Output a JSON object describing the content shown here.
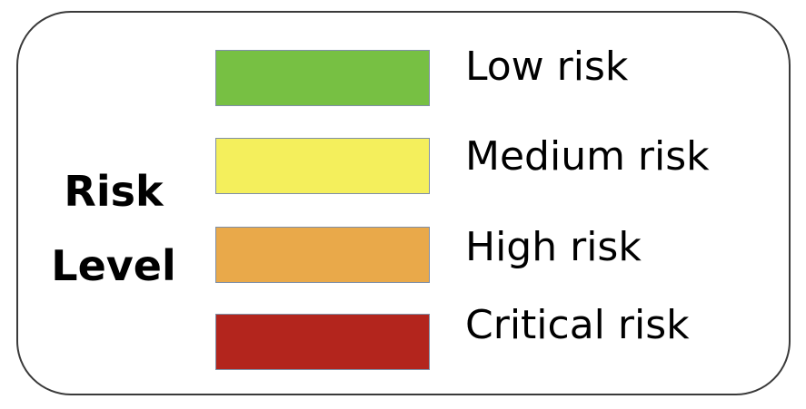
{
  "title": {
    "line1": "Risk",
    "line2": "Level"
  },
  "levels": [
    {
      "label": "Low risk",
      "color": "#77c043"
    },
    {
      "label": "Medium risk",
      "color": "#f4ef5c"
    },
    {
      "label": "High risk",
      "color": "#e9a94a"
    },
    {
      "label": "Critical risk",
      "color": "#b3251d"
    }
  ]
}
